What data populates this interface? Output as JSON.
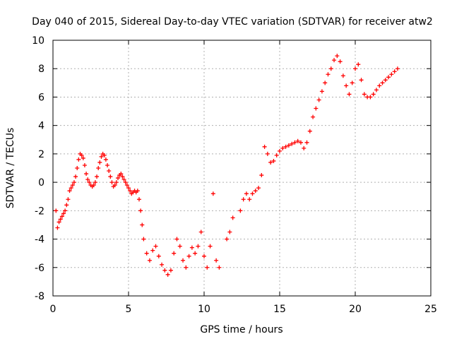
{
  "chart_data": {
    "type": "scatter",
    "title": "Day 040 of 2015, Sidereal Day-to-day VTEC variation (SDTVAR) for receiver atw2",
    "xlabel": "GPS time / hours",
    "ylabel": "SDTVAR / TECUs",
    "xlim": [
      0,
      25
    ],
    "ylim": [
      -8,
      10
    ],
    "xticks": [
      0,
      5,
      10,
      15,
      20,
      25
    ],
    "yticks": [
      -8,
      -6,
      -4,
      -2,
      0,
      2,
      4,
      6,
      8,
      10
    ],
    "grid": true,
    "marker": "+",
    "series": [
      {
        "name": "atw2",
        "color": "#ff0000",
        "x": [
          0.2,
          0.3,
          0.4,
          0.5,
          0.6,
          0.7,
          0.8,
          0.9,
          1.0,
          1.1,
          1.2,
          1.3,
          1.4,
          1.5,
          1.6,
          1.7,
          1.8,
          1.9,
          2.0,
          2.1,
          2.2,
          2.3,
          2.4,
          2.5,
          2.6,
          2.7,
          2.8,
          2.9,
          3.0,
          3.1,
          3.2,
          3.3,
          3.4,
          3.5,
          3.6,
          3.7,
          3.8,
          3.9,
          4.0,
          4.1,
          4.2,
          4.3,
          4.4,
          4.5,
          4.6,
          4.7,
          4.8,
          4.9,
          5.0,
          5.1,
          5.2,
          5.3,
          5.4,
          5.5,
          5.6,
          5.7,
          5.8,
          5.9,
          6.0,
          6.2,
          6.4,
          6.6,
          6.8,
          7.0,
          7.2,
          7.4,
          7.6,
          7.8,
          8.0,
          8.2,
          8.4,
          8.6,
          8.8,
          9.0,
          9.2,
          9.4,
          9.6,
          9.8,
          10.0,
          10.2,
          10.4,
          10.6,
          10.8,
          11.0,
          11.5,
          11.7,
          11.9,
          12.4,
          12.6,
          12.8,
          13.0,
          13.2,
          13.4,
          13.6,
          13.8,
          14.0,
          14.2,
          14.4,
          14.6,
          14.8,
          15.0,
          15.2,
          15.4,
          15.6,
          15.8,
          16.0,
          16.2,
          16.4,
          16.6,
          16.8,
          17.0,
          17.2,
          17.4,
          17.6,
          17.8,
          18.0,
          18.2,
          18.4,
          18.6,
          18.8,
          19.0,
          19.2,
          19.4,
          19.6,
          19.8,
          20.0,
          20.2,
          20.4,
          20.6,
          20.8,
          21.0,
          21.2,
          21.4,
          21.6,
          21.8,
          22.0,
          22.2,
          22.4,
          22.6,
          22.8
        ],
        "values": [
          -2.0,
          -3.2,
          -2.8,
          -2.6,
          -2.4,
          -2.2,
          -2.0,
          -1.6,
          -1.2,
          -0.6,
          -0.4,
          -0.2,
          0.0,
          0.4,
          1.0,
          1.6,
          2.0,
          1.9,
          1.7,
          1.2,
          0.6,
          0.2,
          0.0,
          -0.2,
          -0.3,
          -0.2,
          0.0,
          0.4,
          1.0,
          1.4,
          1.8,
          2.0,
          1.9,
          1.6,
          1.2,
          0.8,
          0.4,
          0.0,
          -0.3,
          -0.2,
          0.0,
          0.3,
          0.5,
          0.6,
          0.4,
          0.2,
          0.0,
          -0.2,
          -0.4,
          -0.6,
          -0.8,
          -0.7,
          -0.6,
          -0.7,
          -0.6,
          -1.2,
          -2.0,
          -3.0,
          -4.0,
          -5.0,
          -5.5,
          -4.8,
          -4.5,
          -5.2,
          -5.8,
          -6.2,
          -6.5,
          -6.2,
          -5.0,
          -4.0,
          -4.5,
          -5.5,
          -6.0,
          -5.2,
          -4.6,
          -5.0,
          -4.5,
          -3.5,
          -5.2,
          -6.0,
          -4.5,
          -0.8,
          -5.5,
          -6.0,
          -4.0,
          -3.5,
          -2.5,
          -2.0,
          -1.2,
          -0.8,
          -1.2,
          -0.8,
          -0.6,
          -0.4,
          0.5,
          2.5,
          2.0,
          1.4,
          1.5,
          1.9,
          2.2,
          2.4,
          2.5,
          2.6,
          2.7,
          2.8,
          2.9,
          2.8,
          2.4,
          2.8,
          3.6,
          4.6,
          5.2,
          5.8,
          6.4,
          7.0,
          7.6,
          8.0,
          8.6,
          8.9,
          8.5,
          7.5,
          6.8,
          6.2,
          7.0,
          8.0,
          8.3,
          7.2,
          6.2,
          6.0,
          6.0,
          6.2,
          6.5,
          6.8,
          7.0,
          7.2,
          7.4,
          7.6,
          7.8,
          8.0
        ]
      }
    ]
  }
}
